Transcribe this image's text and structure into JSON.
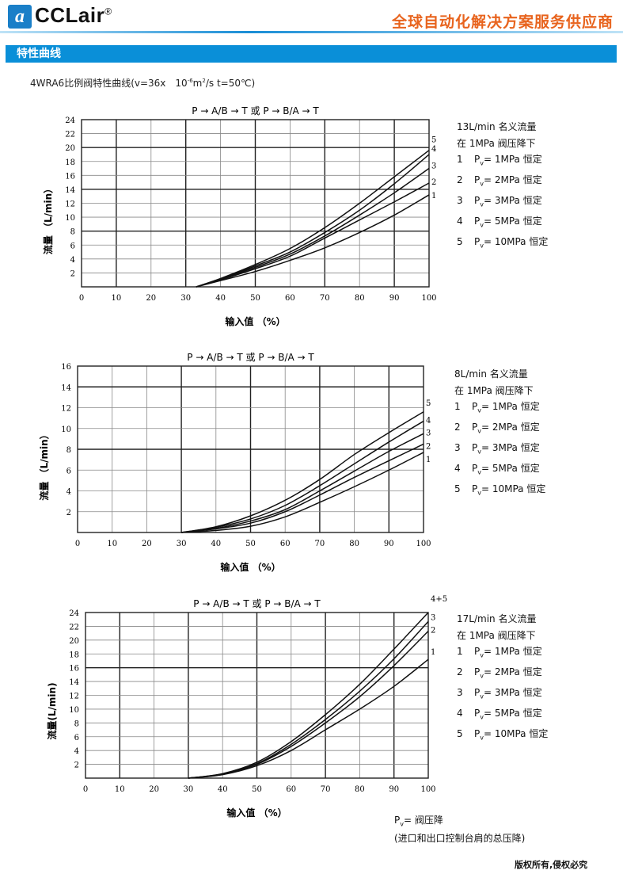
{
  "header": {
    "logo_mark": "a",
    "logo_text": "CCLair",
    "logo_registered": "®",
    "slogan": "全球自动化解决方案服务供应商"
  },
  "section": {
    "title": "特性曲线"
  },
  "subtitle": {
    "prefix": "4WRA6比例阀特性曲线(v=36x　10",
    "exp": "-6",
    "middle": "m",
    "exp2": "2",
    "suffix": "/s  t=50℃)"
  },
  "colors": {
    "accent": "#0a8fd8",
    "slogan": "#e8641e",
    "curve": "#111111"
  },
  "chart_data": [
    {
      "type": "line",
      "title": "P → A/B → T 或 P → B/A → T",
      "xlabel": "输入值 （%）",
      "ylabel": "流量 （L/min）",
      "xlim": [
        0,
        100
      ],
      "ylim": [
        0,
        24
      ],
      "xticks": [
        0,
        10,
        20,
        30,
        40,
        50,
        60,
        70,
        80,
        90,
        100
      ],
      "yticks": [
        2,
        4,
        6,
        8,
        10,
        12,
        14,
        16,
        18,
        20,
        22,
        24
      ],
      "grid": true,
      "legend": {
        "heading1": "13L/min 名义流量",
        "heading2": "在 1MPa 阀压降下",
        "items": [
          {
            "num": "1",
            "p": "P",
            "sub": "v",
            "text": "=  1MPa 恒定"
          },
          {
            "num": "2",
            "p": "P",
            "sub": "v",
            "text": "=  2MPa 恒定"
          },
          {
            "num": "3",
            "p": "P",
            "sub": "v",
            "text": "=  3MPa 恒定"
          },
          {
            "num": "4",
            "p": "P",
            "sub": "v",
            "text": "=  5MPa 恒定"
          },
          {
            "num": "5",
            "p": "P",
            "sub": "v",
            "text": "=  10MPa 恒定"
          }
        ]
      },
      "series": [
        {
          "name": "1",
          "x": [
            33,
            40,
            50,
            60,
            70,
            80,
            90,
            100
          ],
          "y": [
            0,
            0.9,
            2.2,
            3.8,
            5.6,
            7.8,
            10.3,
            13.2
          ]
        },
        {
          "name": "2",
          "x": [
            33,
            40,
            50,
            60,
            70,
            80,
            90,
            100
          ],
          "y": [
            0,
            1.0,
            2.6,
            4.4,
            7.0,
            9.6,
            12.2,
            14.9
          ]
        },
        {
          "name": "3",
          "x": [
            33,
            40,
            50,
            60,
            70,
            80,
            90,
            100
          ],
          "y": [
            0,
            1.1,
            2.8,
            4.7,
            7.3,
            10.3,
            13.5,
            17.0
          ]
        },
        {
          "name": "4",
          "x": [
            33,
            40,
            50,
            60,
            70,
            80,
            90,
            100
          ],
          "y": [
            0,
            1.15,
            3.0,
            5.0,
            7.8,
            11.0,
            14.8,
            19.0
          ]
        },
        {
          "name": "5",
          "x": [
            33,
            40,
            50,
            60,
            70,
            80,
            90,
            100
          ],
          "y": [
            0,
            1.2,
            3.2,
            5.5,
            8.5,
            12.0,
            15.8,
            19.6
          ]
        }
      ]
    },
    {
      "type": "line",
      "title": "P → A/B → T 或 P → B/A → T",
      "xlabel": "输入值 （%）",
      "ylabel": "流量 （L/min）",
      "xlim": [
        0,
        100
      ],
      "ylim": [
        0,
        16
      ],
      "xticks": [
        0,
        10,
        20,
        30,
        40,
        50,
        60,
        70,
        80,
        90,
        100
      ],
      "yticks": [
        2,
        4,
        6,
        8,
        10,
        12,
        14,
        16
      ],
      "grid": true,
      "legend": {
        "heading1": "8L/min 名义流量",
        "heading2": "在 1MPa 阀压降下",
        "items": [
          {
            "num": "1",
            "p": "P",
            "sub": "v",
            "text": "=  1MPa 恒定"
          },
          {
            "num": "2",
            "p": "P",
            "sub": "v",
            "text": "=  2MPa 恒定"
          },
          {
            "num": "3",
            "p": "P",
            "sub": "v",
            "text": "=  3MPa 恒定"
          },
          {
            "num": "4",
            "p": "P",
            "sub": "v",
            "text": "=  5MPa 恒定"
          },
          {
            "num": "5",
            "p": "P",
            "sub": "v",
            "text": "=  10MPa 恒定"
          }
        ]
      },
      "series": [
        {
          "name": "1",
          "x": [
            30,
            40,
            50,
            60,
            70,
            80,
            90,
            100
          ],
          "y": [
            0,
            0.2,
            0.6,
            1.5,
            2.9,
            4.4,
            6.0,
            7.7
          ]
        },
        {
          "name": "2",
          "x": [
            30,
            40,
            50,
            60,
            70,
            80,
            90,
            100
          ],
          "y": [
            0,
            0.35,
            0.9,
            2.0,
            3.6,
            5.3,
            6.9,
            8.5
          ]
        },
        {
          "name": "3",
          "x": [
            30,
            40,
            50,
            60,
            70,
            80,
            90,
            100
          ],
          "y": [
            0,
            0.4,
            1.1,
            2.2,
            4.0,
            5.9,
            7.8,
            9.5
          ]
        },
        {
          "name": "4",
          "x": [
            30,
            40,
            50,
            60,
            70,
            80,
            90,
            100
          ],
          "y": [
            0,
            0.5,
            1.3,
            2.6,
            4.5,
            6.6,
            8.7,
            10.7
          ]
        },
        {
          "name": "5",
          "x": [
            30,
            40,
            50,
            60,
            70,
            80,
            90,
            100
          ],
          "y": [
            0,
            0.55,
            1.6,
            3.1,
            5.1,
            7.5,
            9.6,
            11.6
          ]
        }
      ]
    },
    {
      "type": "line",
      "title": "P → A/B → T 或 P → B/A → T",
      "xlabel": "输入值 （%）",
      "ylabel": "流量(L/min)",
      "xlim": [
        0,
        100
      ],
      "ylim": [
        0,
        24
      ],
      "xticks": [
        0,
        10,
        20,
        30,
        40,
        50,
        60,
        70,
        80,
        90,
        100
      ],
      "yticks": [
        2,
        4,
        6,
        8,
        10,
        12,
        14,
        16,
        18,
        20,
        22,
        24
      ],
      "grid": true,
      "legend": {
        "heading1": "17L/min 名义流量",
        "heading2": "在 1MPa 阀压降下",
        "items": [
          {
            "num": "1",
            "p": "P",
            "sub": "v",
            "text": "=  1MPa 恒定"
          },
          {
            "num": "2",
            "p": "P",
            "sub": "v",
            "text": "=  2MPa 恒定"
          },
          {
            "num": "3",
            "p": "P",
            "sub": "v",
            "text": "=  3MPa 恒定"
          },
          {
            "num": "4",
            "p": "P",
            "sub": "v",
            "text": "=  5MPa 恒定"
          },
          {
            "num": "5",
            "p": "P",
            "sub": "v",
            "text": "=  10MPa 恒定"
          }
        ]
      },
      "series": [
        {
          "name": "1",
          "x": [
            30,
            40,
            50,
            60,
            70,
            80,
            90,
            100
          ],
          "y": [
            0,
            0.5,
            1.8,
            4.0,
            7.0,
            10.0,
            13.3,
            17.2
          ]
        },
        {
          "name": "2",
          "x": [
            30,
            40,
            50,
            60,
            70,
            80,
            90,
            100
          ],
          "y": [
            0,
            0.55,
            2.0,
            4.6,
            8.0,
            11.8,
            16.3,
            21.3
          ]
        },
        {
          "name": "3",
          "x": [
            30,
            40,
            50,
            60,
            70,
            80,
            90,
            100
          ],
          "y": [
            0,
            0.6,
            2.1,
            4.9,
            8.5,
            12.6,
            17.3,
            22.7
          ]
        },
        {
          "name": "4+5",
          "x": [
            30,
            40,
            50,
            60,
            70,
            80,
            90,
            100
          ],
          "y": [
            0,
            0.65,
            2.3,
            5.3,
            9.2,
            13.6,
            18.7,
            24.0
          ]
        }
      ]
    }
  ],
  "note": {
    "p": "P",
    "sub": "v",
    "line1": "= 阀压降",
    "line2": "(进口和出口控制台肩的总压降)"
  },
  "footer": {
    "copyright": "版权所有,侵权必究"
  }
}
